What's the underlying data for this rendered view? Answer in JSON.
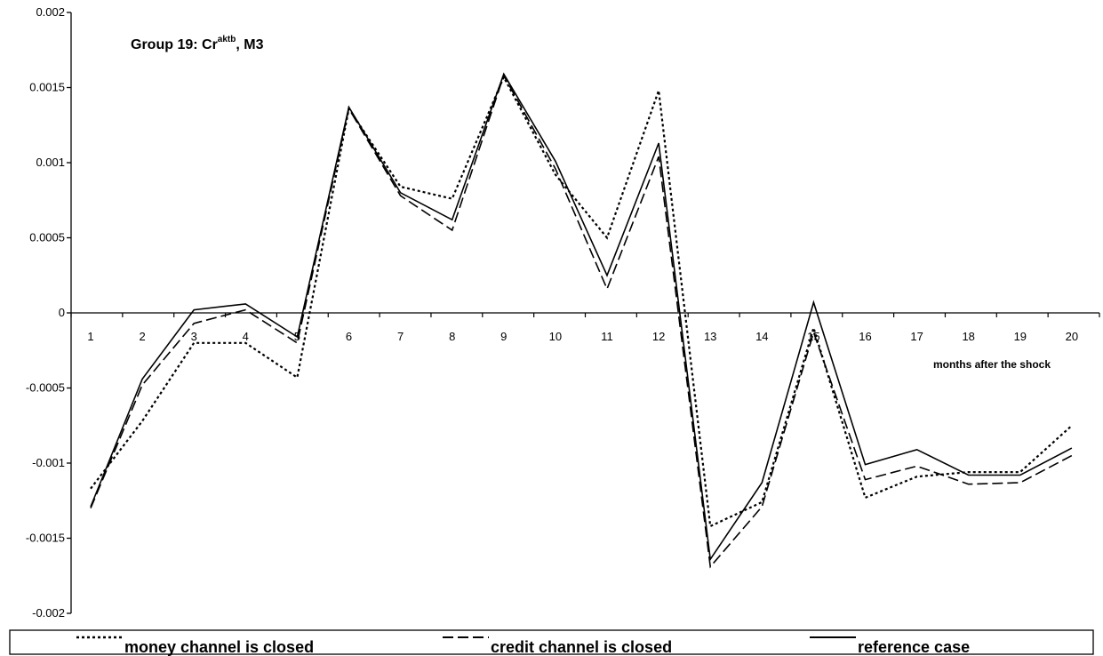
{
  "chart_data": {
    "type": "line",
    "title": {
      "prefix": "Group 19: Cr",
      "superscript": "aktb",
      "suffix": ", M3"
    },
    "xlabel": "months after the shock",
    "ylabel": "",
    "x": [
      1,
      2,
      3,
      4,
      5,
      6,
      7,
      8,
      9,
      10,
      11,
      12,
      13,
      14,
      15,
      16,
      17,
      18,
      19,
      20
    ],
    "ylim": [
      -0.002,
      0.002
    ],
    "y_ticks": [
      "0.002",
      "0.0015",
      "0.001",
      "0.0005",
      "0",
      "-0.0005",
      "-0.001",
      "-0.0015",
      "-0.002"
    ],
    "y_tick_values": [
      0.002,
      0.0015,
      0.001,
      0.0005,
      0,
      -0.0005,
      -0.001,
      -0.0015,
      -0.002
    ],
    "grid": false,
    "legend_position": "bottom",
    "series": [
      {
        "name": "money channel is closed",
        "style": "dotted",
        "values": [
          -0.00117,
          -0.00072,
          -0.0002,
          -0.0002,
          -0.00043,
          0.00136,
          0.00084,
          0.00076,
          0.00157,
          0.00092,
          0.0005,
          0.00148,
          -0.00142,
          -0.00126,
          -0.0001,
          -0.00123,
          -0.00109,
          -0.00106,
          -0.00106,
          -0.00075
        ]
      },
      {
        "name": "credit channel is closed",
        "style": "dashed",
        "values": [
          -0.0013,
          -0.00048,
          -7e-05,
          2e-05,
          -0.0002,
          0.00136,
          0.00078,
          0.00055,
          0.00158,
          0.00096,
          0.00016,
          0.00104,
          -0.00169,
          -0.00129,
          -0.00013,
          -0.00111,
          -0.00102,
          -0.00114,
          -0.00113,
          -0.00095
        ]
      },
      {
        "name": "reference case",
        "style": "solid",
        "values": [
          -0.00129,
          -0.00044,
          2e-05,
          6e-05,
          -0.00016,
          0.00137,
          0.0008,
          0.00062,
          0.00159,
          0.00101,
          0.00025,
          0.00113,
          -0.00164,
          -0.00113,
          7e-05,
          -0.00101,
          -0.00091,
          -0.00108,
          -0.00108,
          -0.0009
        ]
      }
    ]
  }
}
